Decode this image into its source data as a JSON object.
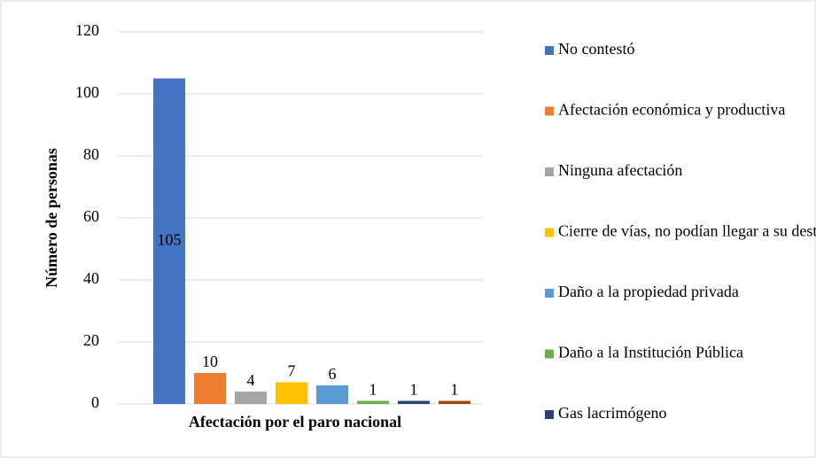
{
  "chart_data": {
    "type": "bar",
    "x_label": "Afectación por el paro nacional",
    "y_label": "Número de personas",
    "ylim": [
      0,
      120
    ],
    "yticks": [
      0,
      20,
      40,
      60,
      80,
      100,
      120
    ],
    "grid": true,
    "series": [
      {
        "name": "No contestó",
        "color": "#4472c4",
        "values": [
          105
        ]
      },
      {
        "name": "Afectación económica y productiva",
        "color": "#ed7d31",
        "values": [
          10
        ]
      },
      {
        "name": "Ninguna afectación",
        "color": "#a5a5a5",
        "values": [
          4
        ]
      },
      {
        "name": "Cierre de vías, no podían llegar a su destino",
        "color": "#ffc000",
        "values": [
          7
        ]
      },
      {
        "name": "Daño a la propiedad privada",
        "color": "#5b9bd5",
        "values": [
          6
        ]
      },
      {
        "name": "Daño a la Institución Pública",
        "color": "#70ad47",
        "values": [
          1
        ]
      },
      {
        "name": "Gas lacrimógeno",
        "color": "#264478",
        "values": [
          1
        ]
      },
      {
        "name": null,
        "color": "#9e480e",
        "values": [
          1
        ]
      }
    ]
  }
}
